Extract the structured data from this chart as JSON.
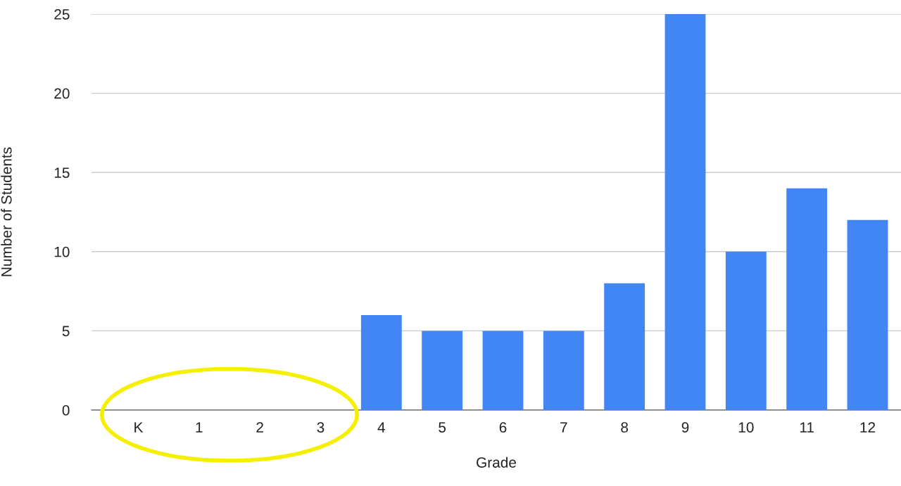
{
  "chart_data": {
    "type": "bar",
    "xlabel": "Grade",
    "ylabel": "Number of Students",
    "categories": [
      "K",
      "1",
      "2",
      "3",
      "4",
      "5",
      "6",
      "7",
      "8",
      "9",
      "10",
      "11",
      "12"
    ],
    "values": [
      0,
      0,
      0,
      0,
      6,
      5,
      5,
      5,
      8,
      25,
      10,
      14,
      12
    ],
    "color": "#4285f4",
    "ylim": [
      0,
      25
    ],
    "yticks": [
      0,
      5,
      10,
      15,
      20,
      25
    ],
    "grid": "y"
  }
}
